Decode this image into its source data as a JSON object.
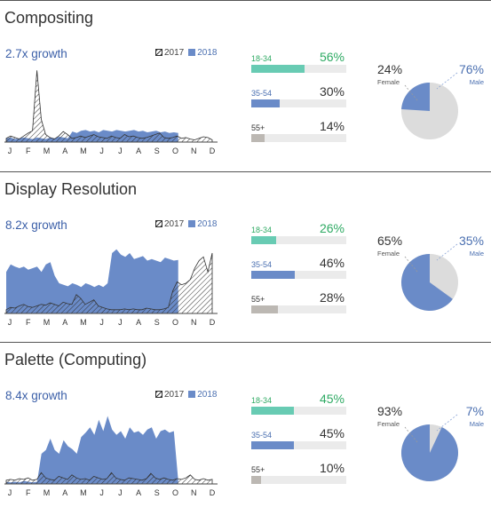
{
  "colors": {
    "series2018": "#6a8bc8",
    "age18_34": "#68cbb3",
    "age35_54": "#6a8bc8",
    "age55": "#bcb8b3",
    "female": "#6a8bc8",
    "male": "#dcdcdc",
    "growth": "#3b5fa8",
    "pct18_34": "#2eaa63"
  },
  "legend": {
    "label_2017": "2017",
    "label_2018": "2018"
  },
  "months": [
    "J",
    "F",
    "M",
    "A",
    "M",
    "J",
    "J",
    "A",
    "S",
    "O",
    "N",
    "D"
  ],
  "sections": [
    {
      "title": "Compositing",
      "growth": "2.7x growth",
      "ages": [
        {
          "label": "18-34",
          "pct": "56%",
          "value": 56
        },
        {
          "label": "35-54",
          "pct": "30%",
          "value": 30
        },
        {
          "label": "55+",
          "pct": "14%",
          "value": 14
        }
      ],
      "female_pct": "24%",
      "female_label": "Female",
      "male_pct": "76%",
      "male_label": "Male",
      "female_value": 24
    },
    {
      "title": "Display Resolution",
      "growth": "8.2x growth",
      "ages": [
        {
          "label": "18-34",
          "pct": "26%",
          "value": 26
        },
        {
          "label": "35-54",
          "pct": "46%",
          "value": 46
        },
        {
          "label": "55+",
          "pct": "28%",
          "value": 28
        }
      ],
      "female_pct": "65%",
      "female_label": "Female",
      "male_pct": "35%",
      "male_label": "Male",
      "female_value": 65
    },
    {
      "title": "Palette (Computing)",
      "growth": "8.4x growth",
      "ages": [
        {
          "label": "18-34",
          "pct": "45%",
          "value": 45
        },
        {
          "label": "35-54",
          "pct": "45%",
          "value": 45
        },
        {
          "label": "55+",
          "pct": "10%",
          "value": 10
        }
      ],
      "female_pct": "93%",
      "female_label": "Female",
      "male_pct": "7%",
      "male_label": "Male",
      "female_value": 93
    }
  ],
  "chart_data": [
    {
      "type": "area",
      "title": "Compositing",
      "ylim": [
        0,
        100
      ],
      "series": [
        {
          "name": "2017",
          "values": [
            5,
            8,
            6,
            4,
            8,
            12,
            15,
            95,
            30,
            10,
            6,
            4,
            8,
            14,
            10,
            5,
            6,
            8,
            6,
            8,
            10,
            7,
            6,
            5,
            8,
            6,
            5,
            10,
            7,
            8,
            6,
            5,
            6,
            8,
            10,
            12,
            6,
            5,
            6,
            8,
            5,
            6,
            4,
            3,
            5,
            7,
            6,
            3
          ]
        },
        {
          "name": "2018",
          "values": [
            5,
            6,
            4,
            5,
            6,
            5,
            4,
            6,
            5,
            4,
            6,
            5,
            7,
            6,
            5,
            14,
            12,
            15,
            16,
            14,
            15,
            13,
            16,
            15,
            14,
            16,
            15,
            14,
            15,
            16,
            14,
            15,
            13,
            14,
            15,
            13,
            14,
            12,
            13,
            12
          ]
        }
      ]
    },
    {
      "type": "area",
      "title": "Display Resolution",
      "ylim": [
        0,
        100
      ],
      "series": [
        {
          "name": "2017",
          "values": [
            5,
            8,
            7,
            10,
            12,
            9,
            8,
            10,
            12,
            11,
            14,
            12,
            10,
            15,
            13,
            12,
            25,
            20,
            12,
            15,
            18,
            10,
            8,
            6,
            5,
            5,
            5,
            6,
            5,
            6,
            5,
            5,
            7,
            6,
            5,
            5,
            6,
            8,
            30,
            42,
            38,
            40,
            45,
            60,
            70,
            75,
            55,
            80
          ]
        },
        {
          "name": "2018",
          "values": [
            55,
            65,
            62,
            60,
            62,
            58,
            60,
            62,
            55,
            65,
            68,
            50,
            40,
            38,
            36,
            40,
            38,
            35,
            40,
            38,
            35,
            38,
            35,
            40,
            80,
            85,
            78,
            75,
            80,
            72,
            74,
            76,
            70,
            72,
            70,
            68,
            74,
            72,
            70,
            71
          ]
        }
      ]
    },
    {
      "type": "area",
      "title": "Palette (Computing)",
      "ylim": [
        0,
        100
      ],
      "series": [
        {
          "name": "2017",
          "values": [
            5,
            6,
            5,
            7,
            6,
            8,
            5,
            6,
            15,
            8,
            6,
            5,
            10,
            8,
            6,
            12,
            8,
            6,
            7,
            5,
            10,
            8,
            6,
            7,
            15,
            8,
            6,
            5,
            8,
            7,
            6,
            5,
            7,
            14,
            8,
            6,
            8,
            6,
            5,
            7,
            6,
            8,
            12,
            6,
            5,
            7,
            5,
            6
          ]
        },
        {
          "name": "2018",
          "values": [
            3,
            2,
            3,
            2,
            4,
            3,
            2,
            3,
            40,
            45,
            60,
            45,
            40,
            58,
            50,
            46,
            40,
            62,
            68,
            75,
            65,
            85,
            70,
            90,
            72,
            65,
            70,
            60,
            75,
            68,
            70,
            65,
            72,
            75,
            60,
            70,
            72,
            68,
            70,
            5
          ]
        }
      ]
    }
  ]
}
